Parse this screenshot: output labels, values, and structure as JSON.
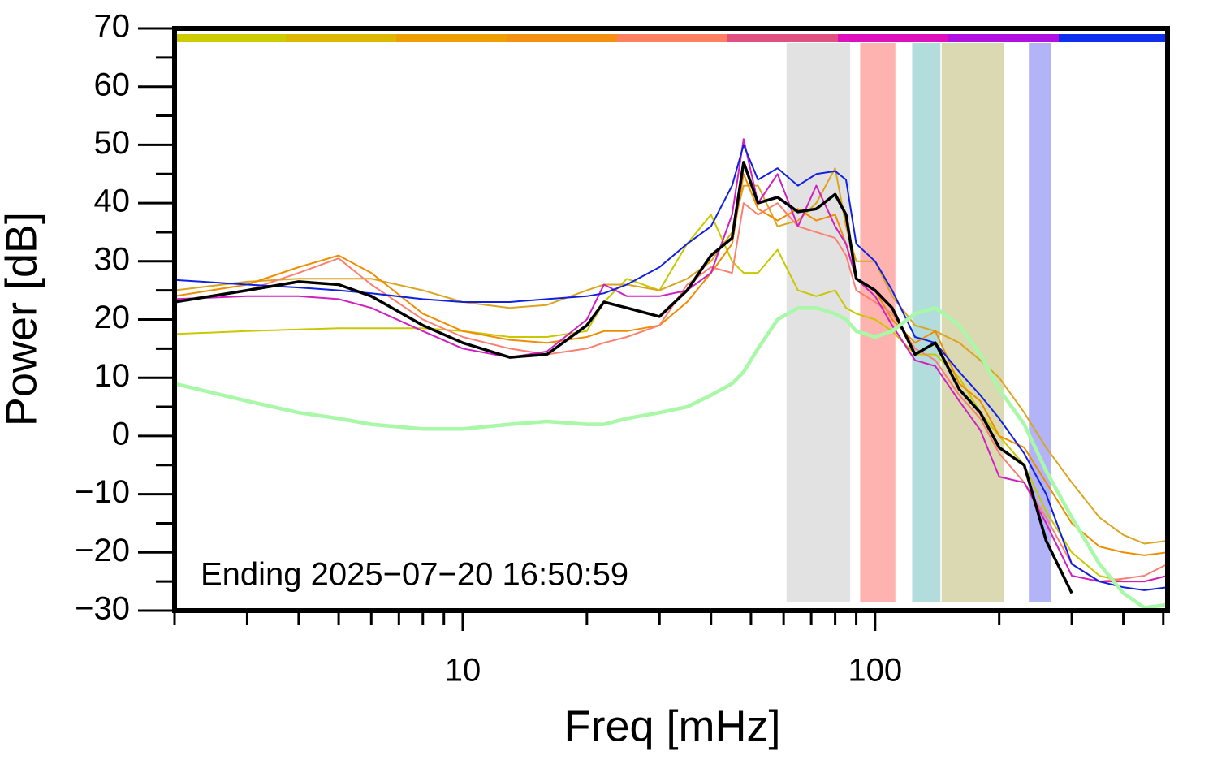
{
  "chart_data": {
    "type": "line",
    "annotation": "Ending 2025−07−20 16:50:59",
    "xlabel": "Freq [mHz]",
    "ylabel": "Power [dB]",
    "xscale": "log",
    "xlim": [
      2,
      512
    ],
    "xticks": [
      10,
      100
    ],
    "xminorticks": [
      2,
      3,
      4,
      5,
      6,
      7,
      8,
      9,
      20,
      30,
      40,
      50,
      60,
      70,
      80,
      90,
      200,
      300,
      400,
      500
    ],
    "ylim": [
      -30,
      70
    ],
    "yticks": [
      {
        "value": -30,
        "label": "−30"
      },
      {
        "value": -20,
        "label": "−20"
      },
      {
        "value": -10,
        "label": "−10"
      },
      0,
      10,
      20,
      30,
      40,
      50,
      60,
      70
    ],
    "yminorticks": [
      -25,
      -15,
      -5,
      5,
      15,
      25,
      35,
      45,
      55,
      65
    ],
    "bands": [
      {
        "xlim": [
          61,
          87
        ],
        "color": "#e2e2e2"
      },
      {
        "xlim": [
          92,
          112
        ],
        "color": "#ffb3b0"
      },
      {
        "xlim": [
          123,
          144
        ],
        "color": "#b3dcdc"
      },
      {
        "xlim": [
          145,
          205
        ],
        "color": "#dad9b2"
      },
      {
        "xlim": [
          236,
          267
        ],
        "color": "#b3b3f7"
      }
    ],
    "x": [
      2,
      3,
      4,
      5,
      6,
      8,
      10,
      13,
      16,
      20,
      22,
      25,
      30,
      35,
      40,
      45,
      48,
      52,
      58,
      65,
      72,
      80,
      85,
      90,
      100,
      110,
      125,
      140,
      160,
      180,
      200,
      230,
      260,
      300,
      350,
      400,
      450,
      512
    ],
    "series": [
      {
        "color": "#c8c800",
        "width": 2,
        "values": [
          17.5,
          18,
          18.3,
          18.5,
          18.5,
          18.5,
          18,
          17,
          17,
          18,
          23,
          27,
          25,
          33,
          38,
          30,
          28,
          28,
          32,
          25,
          24,
          25,
          22,
          21,
          20,
          18,
          14,
          14,
          10,
          4,
          0,
          -5,
          -13,
          -20,
          -24,
          -25,
          -25,
          -24
        ]
      },
      {
        "color": "#daa520",
        "width": 2,
        "values": [
          25,
          26.5,
          27,
          27,
          27,
          25,
          23,
          22,
          22.5,
          25,
          26,
          26,
          25,
          27,
          30,
          35,
          43,
          43,
          36,
          37,
          40,
          46,
          36,
          30,
          30,
          24,
          19,
          18,
          16,
          13,
          10,
          4,
          -2,
          -8,
          -14,
          -17,
          -18.5,
          -18
        ]
      },
      {
        "color": "#f08c00",
        "width": 2,
        "values": [
          24,
          26,
          29,
          31,
          28,
          21,
          18,
          16.5,
          16,
          17,
          18,
          18,
          19,
          23,
          28,
          33,
          45,
          39,
          37,
          39,
          37,
          38,
          33,
          27,
          25,
          20,
          16,
          18,
          9,
          6,
          0,
          -2,
          -8,
          -15,
          -19,
          -20,
          -20.5,
          -20
        ]
      },
      {
        "color": "#fa8072",
        "width": 2,
        "values": [
          23,
          25,
          28,
          30.5,
          26,
          20,
          17,
          15,
          14,
          15,
          16,
          17,
          19,
          26,
          29,
          28,
          40,
          38,
          40,
          36,
          35,
          34,
          31,
          25,
          23,
          21,
          15,
          13,
          7,
          3,
          -3,
          -8,
          -14,
          -22,
          -25,
          -24.5,
          -24,
          -22
        ]
      },
      {
        "color": "#d020c0",
        "width": 2,
        "values": [
          23.5,
          24,
          24,
          23.5,
          22,
          18,
          15,
          13.5,
          14.5,
          20,
          26,
          24,
          24,
          25,
          28,
          38,
          51,
          40,
          45,
          36,
          43,
          36,
          33,
          27,
          24,
          19,
          13,
          12,
          6,
          1,
          -7,
          -8,
          -15,
          -24,
          -25,
          -25,
          -25,
          -24
        ]
      },
      {
        "color": "#1020e0",
        "width": 2,
        "values": [
          26.8,
          26,
          25.5,
          25,
          24.5,
          23.5,
          23,
          23,
          23.5,
          24,
          24.5,
          26,
          29,
          33,
          36,
          43,
          50,
          44,
          46,
          43,
          45,
          45.5,
          44,
          33,
          30,
          25,
          17,
          16,
          11,
          7,
          3,
          -3,
          -10,
          -22,
          -25,
          -26,
          -26.5,
          -26
        ]
      },
      {
        "color": "#000000",
        "width": 3.5,
        "values": [
          23,
          25,
          26.5,
          26,
          24,
          19,
          16,
          13.5,
          14,
          19,
          23,
          22,
          20.5,
          25,
          31,
          34,
          47,
          40,
          41,
          38.5,
          39,
          41.5,
          38,
          27,
          25,
          22,
          14,
          16,
          8,
          4,
          -2,
          -5,
          -18,
          -27,
          null,
          null,
          null,
          null
        ]
      },
      {
        "color": "#a8f8a8",
        "width": 4.5,
        "values": [
          9,
          6,
          4,
          3,
          2,
          1.2,
          1.2,
          2,
          2.5,
          2,
          2,
          3,
          4,
          5,
          7,
          9,
          11,
          15,
          20,
          22,
          22,
          21,
          20,
          18,
          17,
          18,
          21,
          22,
          19,
          14,
          8,
          2,
          -6,
          -14,
          -22,
          -27,
          -29.5,
          -29
        ]
      }
    ]
  }
}
